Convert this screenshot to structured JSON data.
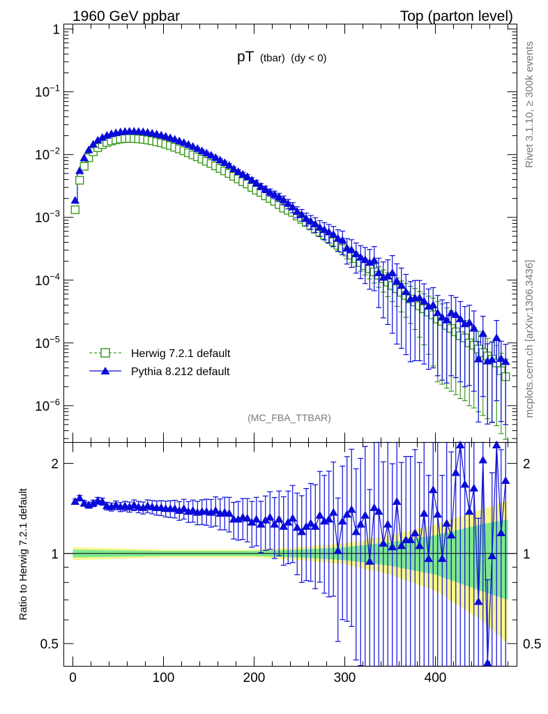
{
  "header": {
    "left": "1960 GeV ppbar",
    "right": "Top (parton level)"
  },
  "side_labels": {
    "top": "Rivet 3.1.10, ≥ 300k events",
    "bottom": "mcplots.cern.ch [arXiv:1306.3436]"
  },
  "chart_data": [
    {
      "panel": "main",
      "type": "line",
      "title_main": "pT",
      "title_sub": "(tbar)",
      "title_cond": "(dy < 0)",
      "analysis_tag": "(MC_FBA_TTBAR)",
      "xlabel": "",
      "ylabel": "",
      "xlim": [
        -10,
        490
      ],
      "y_scale": "log",
      "ylim": [
        2.6e-07,
        1.2
      ],
      "y_tick_labels": [
        {
          "v": 1,
          "base": "1",
          "exp": ""
        },
        {
          "v": 0.1,
          "base": "10",
          "exp": "−1"
        },
        {
          "v": 0.01,
          "base": "10",
          "exp": "−2"
        },
        {
          "v": 0.001,
          "base": "10",
          "exp": "−3"
        },
        {
          "v": 0.0001,
          "base": "10",
          "exp": "−4"
        },
        {
          "v": 1e-05,
          "base": "10",
          "exp": "−5"
        },
        {
          "v": 1e-06,
          "base": "10",
          "exp": "−6"
        }
      ],
      "legend_position": "bottom-left",
      "x": [
        2.5,
        7.5,
        12.5,
        17.5,
        22.5,
        27.5,
        32.5,
        37.5,
        42.5,
        47.5,
        52.5,
        57.5,
        62.5,
        67.5,
        72.5,
        77.5,
        82.5,
        87.5,
        92.5,
        97.5,
        102.5,
        107.5,
        112.5,
        117.5,
        122.5,
        127.5,
        132.5,
        137.5,
        142.5,
        147.5,
        152.5,
        157.5,
        162.5,
        167.5,
        172.5,
        177.5,
        182.5,
        187.5,
        192.5,
        197.5,
        202.5,
        207.5,
        212.5,
        217.5,
        222.5,
        227.5,
        232.5,
        237.5,
        242.5,
        247.5,
        252.5,
        257.5,
        262.5,
        267.5,
        272.5,
        277.5,
        282.5,
        287.5,
        292.5,
        297.5,
        302.5,
        307.5,
        312.5,
        317.5,
        322.5,
        327.5,
        332.5,
        337.5,
        342.5,
        347.5,
        352.5,
        357.5,
        362.5,
        367.5,
        372.5,
        377.5,
        382.5,
        387.5,
        392.5,
        397.5,
        402.5,
        407.5,
        412.5,
        417.5,
        422.5,
        427.5,
        432.5,
        437.5,
        442.5,
        447.5,
        452.5,
        457.5,
        462.5,
        467.5,
        472.5,
        477.5
      ],
      "series": [
        {
          "name": "Herwig 7.2.1 default",
          "color": "#3a9a1e",
          "line_style": "dashed",
          "marker": "open-square",
          "values": [
            0.00132,
            0.0039,
            0.0065,
            0.0089,
            0.0111,
            0.0129,
            0.0144,
            0.0156,
            0.0165,
            0.0172,
            0.0177,
            0.018,
            0.0181,
            0.018,
            0.0178,
            0.0175,
            0.0171,
            0.0166,
            0.016,
            0.0154,
            0.0147,
            0.0139,
            0.0131,
            0.0123,
            0.0115,
            0.0107,
            0.0099,
            0.0092,
            0.0085,
            0.0078,
            0.0072,
            0.0066,
            0.006,
            0.0055,
            0.005,
            0.0045,
            0.0041,
            0.0037,
            0.0034,
            0.003,
            0.0027,
            0.0025,
            0.0022,
            0.002,
            0.0018,
            0.0016,
            0.0014,
            0.0013,
            0.0012,
            0.00105,
            0.00093,
            0.00083,
            0.00073,
            0.00065,
            0.00058,
            0.00052,
            0.00046,
            0.00041,
            0.00036,
            0.00032,
            0.00028,
            0.00025,
            0.00022,
            0.00019,
            0.00017,
            0.000152,
            0.000135,
            0.00012,
            0.000105,
            9.3e-05,
            8.2e-05,
            7.3e-05,
            6.4e-05,
            5.7e-05,
            5e-05,
            4.5e-05,
            3.9e-05,
            3.5e-05,
            3.1e-05,
            2.8e-05,
            2.4e-05,
            2.2e-05,
            1.9e-05,
            1.7e-05,
            1.5e-05,
            1.3e-05,
            1.2e-05,
            1e-05,
            9.2e-06,
            8e-06,
            7e-06,
            6.2e-06,
            5.5e-06,
            4.8e-06,
            3.6e-06,
            2.9e-06
          ]
        },
        {
          "name": "Pythia 8.212 default",
          "color": "#0a0ad8",
          "line_style": "solid",
          "marker": "filled-triangle",
          "values": [
            0.00185,
            0.0055,
            0.0088,
            0.0118,
            0.0145,
            0.0168,
            0.0186,
            0.0201,
            0.0213,
            0.0221,
            0.0228,
            0.0232,
            0.0234,
            0.0234,
            0.0232,
            0.0229,
            0.0224,
            0.0218,
            0.0211,
            0.0203,
            0.0194,
            0.0184,
            0.0174,
            0.0164,
            0.0154,
            0.0144,
            0.0134,
            0.0124,
            0.0114,
            0.0105,
            0.0097,
            0.0089,
            0.0081,
            0.0074,
            0.0067,
            0.0059,
            0.0053,
            0.0048,
            0.0044,
            0.0039,
            0.0035,
            0.0031,
            0.0028,
            0.0025,
            0.0023,
            0.0021,
            0.00188,
            0.00165,
            0.00145,
            0.00123,
            0.0011,
            0.00095,
            0.00086,
            0.00078,
            0.00069,
            0.00063,
            0.00058,
            0.00053,
            0.00046,
            0.00043,
            0.00032,
            0.0003,
            0.00026,
            0.00023,
            0.00021,
            0.00019,
            0.000205,
            0.00013,
            0.00011,
            0.000115,
            0.00013,
            9.58e-05,
            8.2e-05,
            6.5e-05,
            5e-05,
            5.2e-05,
            5.2e-05,
            4.6e-05,
            3.8e-05,
            4e-05,
            3e-05,
            2.55e-05,
            2.3e-05,
            3e-05,
            2.8e-05,
            2.4e-05,
            2e-05,
            2.1e-05,
            1.7e-05,
            5.5e-06,
            1.4e-05,
            5.1e-06,
            5.4e-06,
            1.2e-05,
            5.6e-06,
            5e-06
          ]
        }
      ]
    },
    {
      "panel": "ratio",
      "type": "line",
      "ylabel": "Ratio to Herwig 7.2.1 default",
      "y_scale": "log",
      "ylim": [
        0.42,
        2.35
      ],
      "yticks": [
        0.5,
        1,
        2
      ],
      "y_tick_labels": [
        "0.5",
        "1",
        "2"
      ],
      "xlim": [
        -10,
        490
      ],
      "xticks": [
        0,
        100,
        200,
        300,
        400
      ],
      "x_tick_labels": [
        "0",
        "100",
        "200",
        "300",
        "400"
      ],
      "reference_line": 1,
      "band_colors": {
        "inner": "#7fe88f",
        "outer": "#faf88a"
      },
      "bands": [
        {
          "x": 0,
          "inner": 0.03,
          "outer": 0.05
        },
        {
          "x": 100,
          "inner": 0.02,
          "outer": 0.03
        },
        {
          "x": 200,
          "inner": 0.02,
          "outer": 0.03
        },
        {
          "x": 250,
          "inner": 0.03,
          "outer": 0.05
        },
        {
          "x": 300,
          "inner": 0.05,
          "outer": 0.08
        },
        {
          "x": 350,
          "inner": 0.09,
          "outer": 0.15
        },
        {
          "x": 400,
          "inner": 0.15,
          "outer": 0.25
        },
        {
          "x": 450,
          "inner": 0.25,
          "outer": 0.4
        },
        {
          "x": 480,
          "inner": 0.3,
          "outer": 0.5
        }
      ],
      "series": [
        {
          "name": "Pythia 8.212 default",
          "color": "#0a0ad8",
          "values": [
            1.49,
            1.53,
            1.47,
            1.45,
            1.47,
            1.5,
            1.49,
            1.44,
            1.43,
            1.45,
            1.43,
            1.44,
            1.43,
            1.45,
            1.43,
            1.42,
            1.44,
            1.43,
            1.42,
            1.42,
            1.41,
            1.41,
            1.41,
            1.39,
            1.41,
            1.38,
            1.39,
            1.37,
            1.38,
            1.38,
            1.37,
            1.39,
            1.36,
            1.37,
            1.36,
            1.3,
            1.3,
            1.32,
            1.31,
            1.27,
            1.3,
            1.25,
            1.29,
            1.32,
            1.25,
            1.3,
            1.23,
            1.27,
            1.31,
            1.22,
            1.18,
            1.23,
            1.26,
            1.23,
            1.34,
            1.28,
            1.3,
            1.37,
            1.02,
            1.28,
            1.35,
            1.4,
            1.18,
            1.25,
            1.34,
            0.94,
            1.42,
            1.38,
            1.08,
            1.25,
            1.05,
            1.49,
            1.06,
            1.11,
            1.11,
            1.17,
            1.06,
            1.36,
            0.96,
            1.63,
            1.35,
            0.96,
            1.26,
            1.15,
            1.86,
            2.3,
            1.7,
            1.38,
            1.65,
            0.69,
            2.05,
            0.43,
            0.98,
            2.3,
            1.17,
            1.75
          ]
        }
      ]
    }
  ]
}
